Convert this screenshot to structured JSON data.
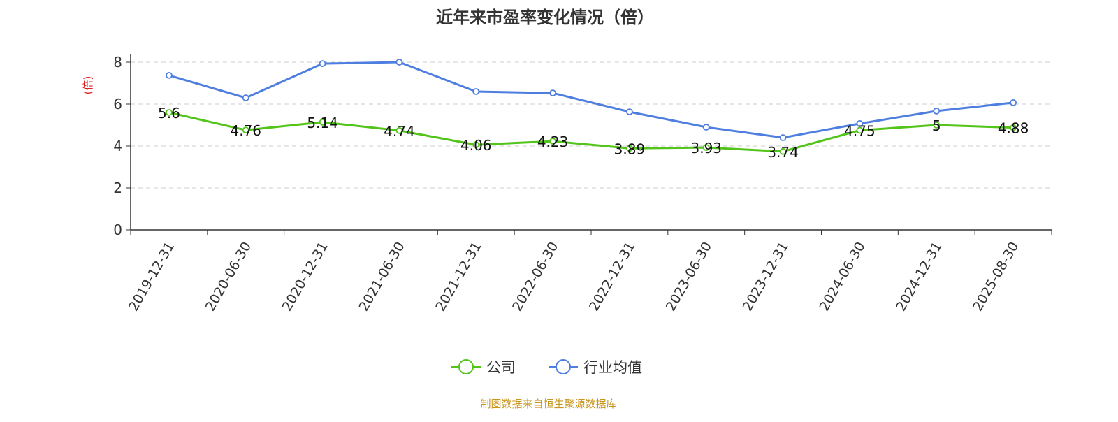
{
  "chart_data": {
    "type": "line",
    "title": "近年来市盈率变化情况（倍）",
    "ylabel": "(倍)",
    "ylim": [
      0,
      8
    ],
    "yticks": [
      0,
      2,
      4,
      6,
      8
    ],
    "grid": true,
    "legend_position": "bottom",
    "categories": [
      "2019-12-31",
      "2020-06-30",
      "2020-12-31",
      "2021-06-30",
      "2021-12-31",
      "2022-06-30",
      "2022-12-31",
      "2023-06-30",
      "2023-12-31",
      "2024-06-30",
      "2024-12-31",
      "2025-08-30"
    ],
    "series": [
      {
        "name": "公司",
        "color": "#52c41a",
        "values": [
          5.6,
          4.76,
          5.14,
          4.74,
          4.06,
          4.23,
          3.89,
          3.93,
          3.74,
          4.75,
          5,
          4.88
        ],
        "labels": [
          "5.6",
          "4.76",
          "5.14",
          "4.74",
          "4.06",
          "4.23",
          "3.89",
          "3.93",
          "3.74",
          "4.75",
          "5",
          "4.88"
        ]
      },
      {
        "name": "行业均值",
        "color": "#4e7fe0",
        "values": [
          7.37,
          6.3,
          7.93,
          8.0,
          6.6,
          6.53,
          5.63,
          4.9,
          4.4,
          5.07,
          5.67,
          6.07
        ]
      }
    ]
  },
  "footer": {
    "source": "制图数据来自恒生聚源数据库",
    "source_color": "#c8961e"
  },
  "ylabel_color": "#e02020"
}
